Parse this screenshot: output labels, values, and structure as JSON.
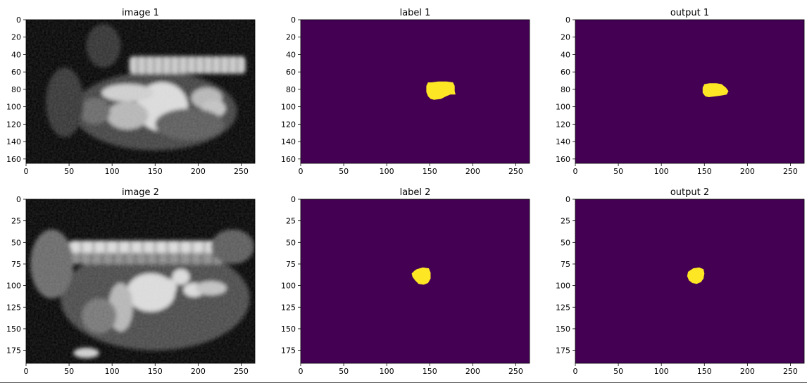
{
  "figure": {
    "background": "#ffffff"
  },
  "colors": {
    "background_mask": "#440154",
    "foreground_mask": "#fde725"
  },
  "chart_data": [
    {
      "type": "heatmap",
      "subtype": "grayscale-mri",
      "title": "image 1",
      "xlim": [
        0,
        266
      ],
      "ylim": [
        165,
        0
      ],
      "xticks": [
        0,
        50,
        100,
        150,
        200,
        250
      ],
      "yticks": [
        0,
        20,
        40,
        60,
        80,
        100,
        120,
        140,
        160
      ],
      "anatomy": [
        {
          "kind": "blob",
          "cx": 150,
          "cy": 105,
          "rx": 95,
          "ry": 45,
          "v": 0.25
        },
        {
          "kind": "spine-band",
          "x0": 120,
          "x1": 255,
          "y0": 42,
          "y1": 62,
          "v": 0.8
        },
        {
          "kind": "blob",
          "cx": 158,
          "cy": 100,
          "rx": 30,
          "ry": 28,
          "v": 0.85
        },
        {
          "kind": "blob",
          "cx": 118,
          "cy": 84,
          "rx": 30,
          "ry": 10,
          "v": 0.8
        },
        {
          "kind": "blob",
          "cx": 118,
          "cy": 110,
          "rx": 24,
          "ry": 16,
          "v": 0.7
        },
        {
          "kind": "blob",
          "cx": 210,
          "cy": 90,
          "rx": 18,
          "ry": 12,
          "v": 0.7
        },
        {
          "kind": "blob",
          "cx": 218,
          "cy": 102,
          "rx": 14,
          "ry": 10,
          "v": 0.75
        },
        {
          "kind": "blob",
          "cx": 80,
          "cy": 105,
          "rx": 18,
          "ry": 15,
          "v": 0.4
        },
        {
          "kind": "blob",
          "cx": 190,
          "cy": 120,
          "rx": 40,
          "ry": 18,
          "v": 0.35
        },
        {
          "kind": "blob",
          "cx": 90,
          "cy": 30,
          "rx": 20,
          "ry": 25,
          "v": 0.18
        },
        {
          "kind": "blob",
          "cx": 45,
          "cy": 95,
          "rx": 22,
          "ry": 40,
          "v": 0.2
        }
      ]
    },
    {
      "type": "heatmap",
      "subtype": "binary-mask",
      "title": "label 1",
      "xlim": [
        0,
        266
      ],
      "ylim": [
        165,
        0
      ],
      "xticks": [
        0,
        50,
        100,
        150,
        200,
        250
      ],
      "yticks": [
        0,
        20,
        40,
        60,
        80,
        100,
        120,
        140,
        160
      ],
      "mask_polygon": [
        [
          148,
          72
        ],
        [
          152,
          72
        ],
        [
          160,
          71
        ],
        [
          170,
          71
        ],
        [
          177,
          72
        ],
        [
          179,
          76
        ],
        [
          179,
          82
        ],
        [
          180,
          86
        ],
        [
          174,
          86
        ],
        [
          169,
          88
        ],
        [
          163,
          91
        ],
        [
          155,
          92
        ],
        [
          151,
          91
        ],
        [
          148,
          88
        ],
        [
          146,
          83
        ],
        [
          146,
          76
        ]
      ]
    },
    {
      "type": "heatmap",
      "subtype": "binary-mask",
      "title": "output 1",
      "xlim": [
        0,
        266
      ],
      "ylim": [
        165,
        0
      ],
      "xticks": [
        0,
        50,
        100,
        150,
        200,
        250
      ],
      "yticks": [
        0,
        20,
        40,
        60,
        80,
        100,
        120,
        140,
        160
      ],
      "mask_polygon": [
        [
          150,
          74
        ],
        [
          156,
          73
        ],
        [
          164,
          73
        ],
        [
          170,
          74
        ],
        [
          175,
          78
        ],
        [
          178,
          82
        ],
        [
          176,
          86
        ],
        [
          170,
          87
        ],
        [
          163,
          88
        ],
        [
          155,
          89
        ],
        [
          151,
          88
        ],
        [
          148,
          84
        ],
        [
          148,
          78
        ]
      ]
    },
    {
      "type": "heatmap",
      "subtype": "grayscale-mri",
      "title": "image 2",
      "xlim": [
        0,
        266
      ],
      "ylim": [
        190,
        0
      ],
      "xticks": [
        0,
        50,
        100,
        150,
        200,
        250
      ],
      "yticks": [
        0,
        25,
        50,
        75,
        100,
        125,
        150,
        175
      ],
      "anatomy": [
        {
          "kind": "blob",
          "cx": 150,
          "cy": 115,
          "rx": 110,
          "ry": 60,
          "v": 0.28
        },
        {
          "kind": "spine-band",
          "x0": 50,
          "x1": 250,
          "y0": 48,
          "y1": 62,
          "v": 0.85
        },
        {
          "kind": "spine-band",
          "x0": 50,
          "x1": 230,
          "y0": 62,
          "y1": 75,
          "v": 0.55
        },
        {
          "kind": "blob",
          "cx": 145,
          "cy": 108,
          "rx": 28,
          "ry": 22,
          "v": 0.85
        },
        {
          "kind": "blob",
          "cx": 180,
          "cy": 90,
          "rx": 10,
          "ry": 9,
          "v": 0.85
        },
        {
          "kind": "blob",
          "cx": 165,
          "cy": 102,
          "rx": 10,
          "ry": 10,
          "v": 0.85
        },
        {
          "kind": "blob",
          "cx": 195,
          "cy": 105,
          "rx": 12,
          "ry": 8,
          "v": 0.85
        },
        {
          "kind": "blob",
          "cx": 215,
          "cy": 103,
          "rx": 18,
          "ry": 8,
          "v": 0.75
        },
        {
          "kind": "blob",
          "cx": 110,
          "cy": 125,
          "rx": 14,
          "ry": 28,
          "v": 0.7
        },
        {
          "kind": "blob",
          "cx": 85,
          "cy": 135,
          "rx": 20,
          "ry": 20,
          "v": 0.45
        },
        {
          "kind": "blob",
          "cx": 30,
          "cy": 75,
          "rx": 25,
          "ry": 40,
          "v": 0.4
        },
        {
          "kind": "blob",
          "cx": 240,
          "cy": 55,
          "rx": 25,
          "ry": 20,
          "v": 0.35
        },
        {
          "kind": "blob",
          "cx": 70,
          "cy": 178,
          "rx": 15,
          "ry": 6,
          "v": 0.8
        }
      ]
    },
    {
      "type": "heatmap",
      "subtype": "binary-mask",
      "title": "label 2",
      "xlim": [
        0,
        266
      ],
      "ylim": [
        190,
        0
      ],
      "xticks": [
        0,
        50,
        100,
        150,
        200,
        250
      ],
      "yticks": [
        0,
        25,
        50,
        75,
        100,
        125,
        150,
        175
      ],
      "mask_polygon": [
        [
          135,
          81
        ],
        [
          142,
          79
        ],
        [
          149,
          80
        ],
        [
          151,
          85
        ],
        [
          151,
          92
        ],
        [
          148,
          97
        ],
        [
          143,
          99
        ],
        [
          137,
          98
        ],
        [
          133,
          94
        ],
        [
          130,
          90
        ],
        [
          129,
          86
        ],
        [
          132,
          83
        ]
      ]
    },
    {
      "type": "heatmap",
      "subtype": "binary-mask",
      "title": "output 2",
      "xlim": [
        0,
        266
      ],
      "ylim": [
        190,
        0
      ],
      "xticks": [
        0,
        50,
        100,
        150,
        200,
        250
      ],
      "yticks": [
        0,
        25,
        50,
        75,
        100,
        125,
        150,
        175
      ],
      "mask_polygon": [
        [
          137,
          80
        ],
        [
          144,
          79
        ],
        [
          149,
          81
        ],
        [
          150,
          86
        ],
        [
          149,
          92
        ],
        [
          146,
          96
        ],
        [
          141,
          98
        ],
        [
          136,
          97
        ],
        [
          132,
          94
        ],
        [
          130,
          89
        ],
        [
          131,
          84
        ]
      ]
    }
  ]
}
